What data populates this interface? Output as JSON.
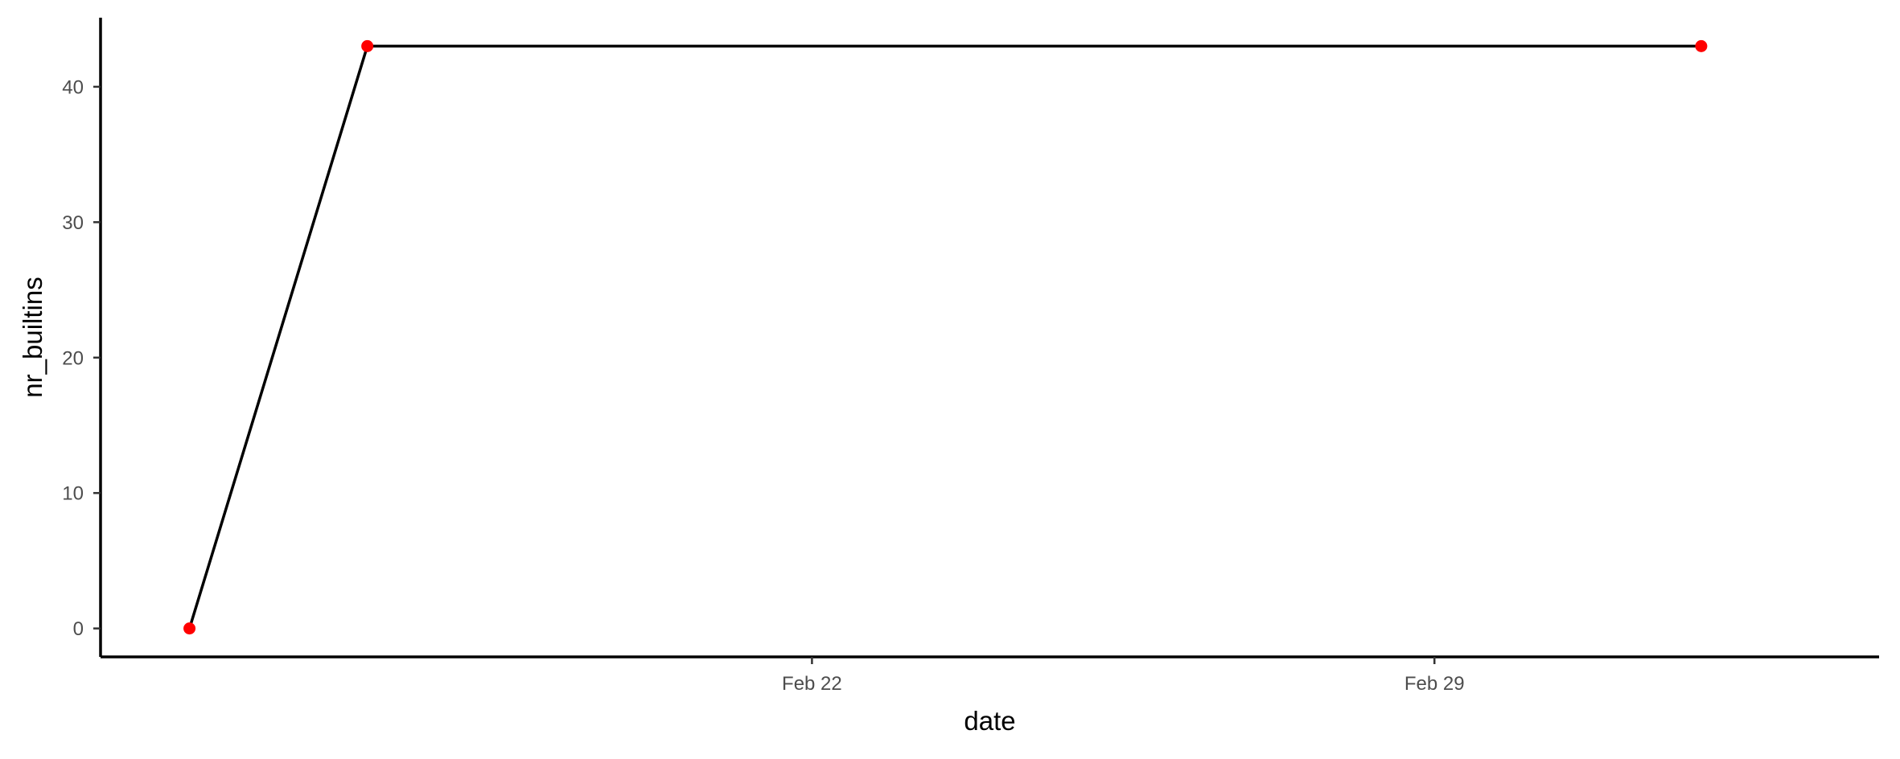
{
  "chart_data": {
    "type": "line",
    "title": "",
    "xlabel": "date",
    "ylabel": "nr_builtins",
    "x_type": "date",
    "x": [
      "2024-02-15",
      "2024-02-17",
      "2024-03-03"
    ],
    "xlim": [
      "2024-02-14",
      "2024-03-05"
    ],
    "x_ticks": [
      "2024-02-22",
      "2024-02-29"
    ],
    "x_tick_labels": [
      "Feb 22",
      "Feb 29"
    ],
    "ylim": [
      -2.1,
      45.1
    ],
    "y_ticks": [
      0,
      10,
      20,
      30,
      40
    ],
    "y_tick_labels": [
      "0",
      "10",
      "20",
      "30",
      "40"
    ],
    "series": [
      {
        "values": [
          0,
          43,
          43
        ],
        "line_color": "#000000",
        "point_color": "#ff0000"
      }
    ],
    "grid": false,
    "legend": "none"
  }
}
